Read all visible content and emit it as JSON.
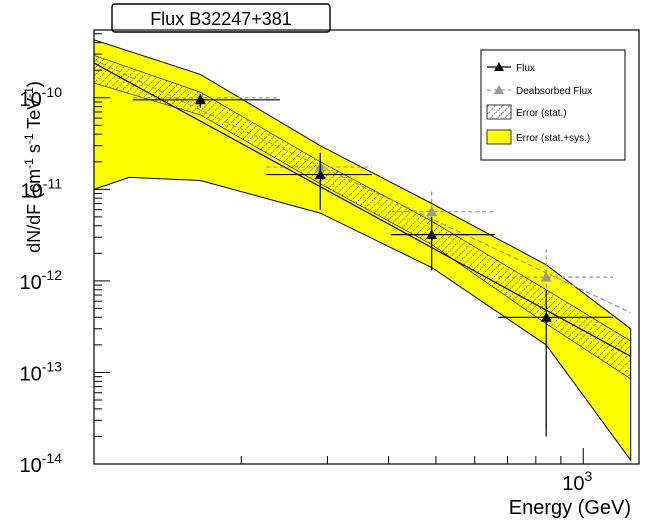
{
  "chart_data": {
    "type": "scatter",
    "title": "Flux B32247+381",
    "xlabel": "Energy (GeV)",
    "ylabel": {
      "main": "dN/dF (cm",
      "exp1": "-1",
      "mid": " s",
      "exp2": "-1",
      "mid2": " TeV",
      "exp3": "-1",
      "end": ")"
    },
    "x_scale": "log",
    "y_scale": "log",
    "xlim": [
      100,
      1300
    ],
    "ylim": [
      1e-14,
      5.5e-10
    ],
    "y_ticks": [
      {
        "value": 1e-14,
        "base": "10",
        "exp": "-14"
      },
      {
        "value": 1e-13,
        "base": "10",
        "exp": "-13"
      },
      {
        "value": 1e-12,
        "base": "10",
        "exp": "-12"
      },
      {
        "value": 1e-11,
        "base": "10",
        "exp": "-11"
      },
      {
        "value": 1e-10,
        "base": "10",
        "exp": "-10"
      }
    ],
    "x_ticks": [
      {
        "value": 1000,
        "base": "10",
        "exp": "3"
      }
    ],
    "legend": {
      "position": "top-right",
      "entries": [
        {
          "label": "Flux",
          "style": "line-marker",
          "color": "#000000"
        },
        {
          "label": "Deabsorbed Flux",
          "style": "dashed-marker",
          "color": "#999999"
        },
        {
          "label": "Error (stat.)",
          "style": "hatch",
          "color": "#000000"
        },
        {
          "label": "Error (stat.+sys.)",
          "style": "fill",
          "color": "#ffff00"
        }
      ]
    },
    "series": [
      {
        "name": "Flux",
        "color": "#000000",
        "points": [
          {
            "x": 165,
            "y": 9.5e-11,
            "xlo": 120,
            "xhi": 240,
            "ylo": 7.8e-11,
            "yhi": 1.1e-10
          },
          {
            "x": 290,
            "y": 1.45e-11,
            "xlo": 225,
            "xhi": 370,
            "ylo": 6e-12,
            "yhi": 2.5e-11
          },
          {
            "x": 490,
            "y": 3.2e-12,
            "xlo": 405,
            "xhi": 660,
            "ylo": 1.3e-12,
            "yhi": 5e-12
          },
          {
            "x": 840,
            "y": 4e-13,
            "xlo": 670,
            "xhi": 1150,
            "ylo": 2e-14,
            "yhi": 8e-13
          }
        ],
        "fit": {
          "x": [
            100,
            1250
          ],
          "y": [
            2.4e-10,
            1.5e-13
          ]
        }
      },
      {
        "name": "Deabsorbed Flux",
        "color": "#999999",
        "points": [
          {
            "x": 165,
            "y": 1e-10,
            "xlo": 120,
            "xhi": 240,
            "ylo": 8.2e-11,
            "yhi": 1.15e-10
          },
          {
            "x": 290,
            "y": 1.75e-11,
            "xlo": 225,
            "xhi": 370,
            "ylo": 8e-12,
            "yhi": 2.9e-11
          },
          {
            "x": 490,
            "y": 5.7e-12,
            "xlo": 405,
            "xhi": 660,
            "ylo": 2.5e-12,
            "yhi": 9.5e-12
          },
          {
            "x": 840,
            "y": 1.1e-12,
            "xlo": 670,
            "xhi": 1150,
            "ylo": 2.5e-14,
            "yhi": 2.2e-12
          }
        ],
        "fit": {
          "x": [
            100,
            1250
          ],
          "y": [
            2.6e-10,
            4.5e-13
          ]
        }
      }
    ],
    "bands": [
      {
        "name": "Error (stat.+sys.)",
        "color": "#ffff00",
        "upper": {
          "x": [
            100,
            165,
            290,
            490,
            840,
            1250
          ],
          "y": [
            4.3e-10,
            1.8e-10,
            3e-11,
            7e-12,
            1.5e-12,
            3e-13
          ]
        },
        "lower": {
          "x": [
            100,
            118,
            165,
            290,
            490,
            840,
            1250
          ],
          "y": [
            1e-11,
            1.35e-11,
            1.25e-11,
            5.5e-12,
            1.4e-12,
            2e-13,
            1.1e-14
          ]
        }
      },
      {
        "name": "Error (stat.)",
        "color": "#000000",
        "upper": {
          "x": [
            100,
            165,
            290,
            490,
            840,
            1250
          ],
          "y": [
            2.9e-10,
            1.15e-10,
            2e-11,
            4.5e-12,
            8e-13,
            2.2e-13
          ]
        },
        "lower": {
          "x": [
            100,
            165,
            290,
            490,
            840,
            1250
          ],
          "y": [
            1.45e-10,
            6.5e-11,
            1.15e-11,
            2.5e-12,
            3.4e-13,
            8.5e-14
          ]
        }
      }
    ]
  }
}
